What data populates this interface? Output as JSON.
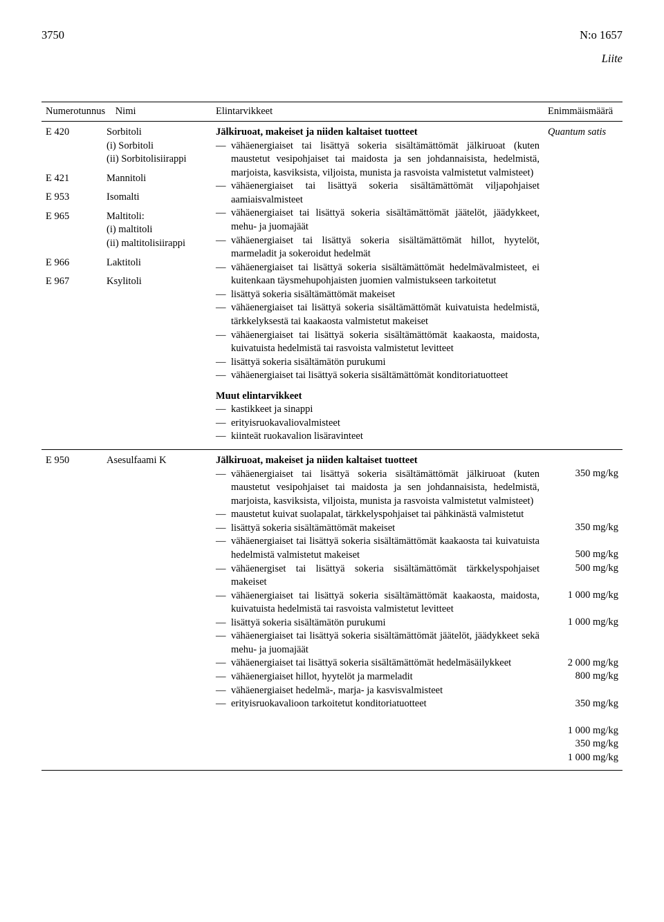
{
  "header": {
    "page_number": "3750",
    "doc_number": "N:o 1657",
    "attachment": "Liite"
  },
  "table_head": {
    "col1": "Numerotunnus",
    "col2": "Nimi",
    "col3": "Elintarvikkeet",
    "col4": "Enimmäismäärä"
  },
  "row1": {
    "codes": [
      {
        "e": "E 420",
        "name1": "Sorbitoli",
        "name2": "(i) Sorbitoli",
        "name3": "(ii) Sorbitolisiirappi"
      },
      {
        "e": "E 421",
        "name1": "Mannitoli"
      },
      {
        "e": "E 953",
        "name1": "Isomalti"
      },
      {
        "e": "E 965",
        "name1": "Maltitoli:",
        "name2": "(i) maltitoli",
        "name3": "(ii) maltitolisiirappi"
      },
      {
        "e": "E 966",
        "name1": "Laktitoli"
      },
      {
        "e": "E 967",
        "name1": "Ksylitoli"
      }
    ],
    "food_hdr1": "Jälkiruoat, makeiset ja niiden kaltaiset tuotteet",
    "foods1": [
      "vähäenergiaiset tai lisättyä sokeria sisältämättömät jäl­kiruoat (kuten maustetut vesipohjaiset tai maidosta ja sen johdannaisista, hedelmistä, marjoista, kasviksista, viljoista, munista ja rasvoista valmistetut valmisteet)",
      "vähäenergiaiset tai lisättyä sokeria sisältämättömät vil­japohjaiset aamiaisvalmisteet",
      "vähäenergiaiset tai lisättyä sokeria sisältämättömät jää­telöt, jäädykkeet, mehu- ja juomajäät",
      "vähäenergiaiset tai lisättyä sokeria sisältämättömät hil­lot, hyytelöt, marmeladit ja sokeroidut hedelmät",
      "vähäenergiaiset tai lisättyä sokeria sisältämättömät he­delmävalmisteet, ei kuitenkaan täysmehupohjaisten juo­mien valmistukseen tarkoitetut",
      "lisättyä sokeria sisältämättömät makeiset",
      "vähäenergiaiset tai lisättyä sokeria sisältämättömät kui­vatuista hedelmistä, tärkkelyksestä tai kaakaosta val­mistetut makeiset",
      "vähäenergiaiset tai lisättyä sokeria sisältämättömät kaa­kaosta, maidosta, kuivatuista hedelmistä tai rasvoista valmistetut levitteet",
      "lisättyä sokeria sisältämätön purukumi",
      "vähäenergiaiset tai lisättyä sokeria sisältämättömät kon­ditoriatuotteet"
    ],
    "food_hdr2": "Muut elintarvikkeet",
    "foods2": [
      "kastikkeet ja sinappi",
      "erityisruokavaliovalmisteet",
      "kiinteät ruokavalion lisäravinteet"
    ],
    "max": "Quantum satis"
  },
  "row2": {
    "code_e": "E 950",
    "code_name": "Asesulfaami K",
    "food_hdr": "Jälkiruoat, makeiset ja niiden kaltaiset tuotteet",
    "items": [
      {
        "text": "vähäenergiaiset tai lisättyä sokeria sisältämättömät jäl­kiruoat (kuten maustetut vesipohjaiset tai maidosta ja sen johdannaisista, hedelmistä, marjoista, kasviksista, viljoista, munista ja rasvoista valmistetut valmisteet)",
        "max": "350 mg/kg",
        "lines": 4
      },
      {
        "text": "maustetut kuivat suolapalat, tärkkelyspohjaiset tai päh­kinästä valmistetut",
        "max": "350 mg/kg",
        "lines": 2
      },
      {
        "text": "lisättyä sokeria sisältämättömät makeiset",
        "max": "500 mg/kg",
        "lines": 1
      },
      {
        "text": "vähäenergiaiset tai lisättyä sokeria sisältämättömät kaa­kaosta tai kuivatuista hedelmistä valmistetut makeiset",
        "max": "500 mg/kg",
        "lines": 2
      },
      {
        "text": "vähäenergiset tai lisättyä sokeria sisältämättömät tärkkelyspohjaiset makeiset",
        "max": "1 000 mg/kg",
        "lines": 2
      },
      {
        "text": "vähäenergiaiset tai lisättyä sokeria sisältämättömät kaa­kaosta, maidosta, kuivatuista hedelmistä tai rasvoista valmistetut levitteet",
        "max": "1 000 mg/kg",
        "lines": 3
      },
      {
        "text": "lisättyä sokeria sisältämätön purukumi",
        "max": "2 000 mg/kg",
        "lines": 1
      },
      {
        "text": "vähäenergiaiset tai lisättyä sokeria sisältämättömät jää­telöt, jäädykkeet sekä mehu- ja juomajäät",
        "max": "800 mg/kg",
        "lines": 2
      },
      {
        "text": "vähäenergiaiset tai lisättyä sokeria sisältämättömät he­delmäsäilykkeet",
        "max": "350 mg/kg",
        "lines": 2
      },
      {
        "text": "vähäenergiaiset hillot, hyytelöt ja marmeladit",
        "max": "1 000 mg/kg",
        "lines": 1
      },
      {
        "text": "vähäenergiaiset hedelmä-, marja- ja kasvisvalmisteet",
        "max": "350 mg/kg",
        "lines": 1
      },
      {
        "text": "erityisruokavalioon tarkoitetut konditoriatuotteet",
        "max": "1 000 mg/kg",
        "lines": 1
      }
    ]
  }
}
